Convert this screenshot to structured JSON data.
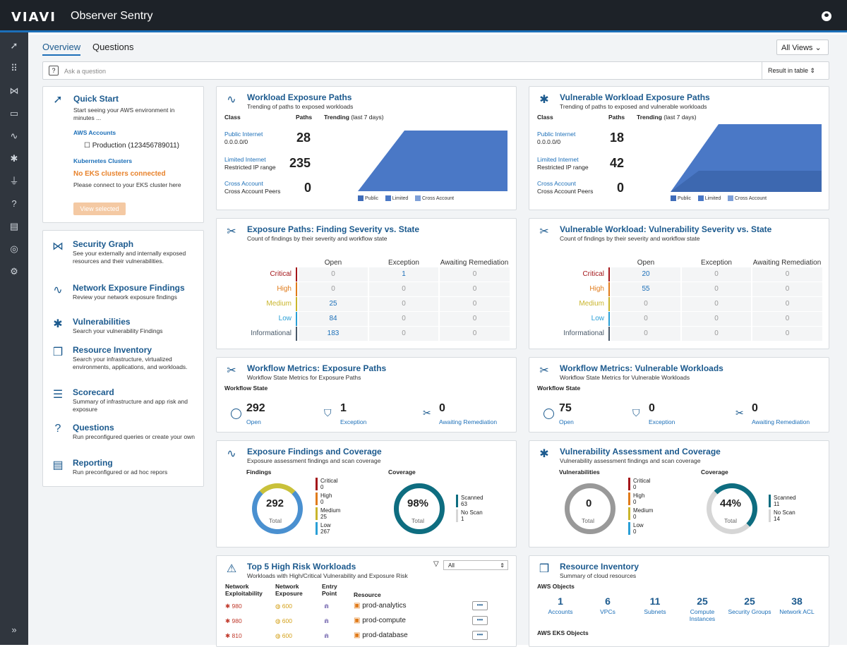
{
  "app": {
    "logo": "VIAVI",
    "name": "Observer Sentry"
  },
  "tabs": [
    "Overview",
    "Questions"
  ],
  "views": "All Views",
  "ask": {
    "placeholder": "Ask a question",
    "mode": "Result in table"
  },
  "quick_start": {
    "title": "Quick Start",
    "desc": "Start seeing your AWS environment in minutes ...",
    "aws": "AWS Accounts",
    "account": "Production (123456789011)",
    "k8s": "Kubernetes Clusters",
    "warn": "No EKS clusters connected",
    "connect": "Please connect to your EKS cluster here",
    "button": "View selected"
  },
  "nav": [
    {
      "title": "Security Graph",
      "desc": "See your externally and internally exposed resources and their vulnerabilities."
    },
    {
      "title": "Network Exposure Findings",
      "desc": "Review your network exposure findings"
    },
    {
      "title": "Vulnerabilities",
      "desc": "Search your vulnerability Findings"
    },
    {
      "title": "Resource Inventory",
      "desc": "Search your infrastructure, virtualized environments, applications, and workloads."
    },
    {
      "title": "Scorecard",
      "desc": "Summary of infrastructure and app risk and exposure"
    },
    {
      "title": "Questions",
      "desc": "Run preconfigured queries or create your own"
    },
    {
      "title": "Reporting",
      "desc": "Run preconfigured or ad hoc repors"
    }
  ],
  "wep": {
    "title": "Workload Exposure Paths",
    "sub": "Trending of paths to exposed workloads",
    "h_class": "Class",
    "h_paths": "Paths",
    "h_trend": "Trending",
    "h_trend2": "(last 7 days)",
    "rows": [
      {
        "name": "Public Internet",
        "sub": "0.0.0.0/0",
        "val": "28"
      },
      {
        "name": "Limited Internet",
        "sub": "Restricted IP range",
        "val": "235"
      },
      {
        "name": "Cross Account",
        "sub": "Cross Account Peers",
        "val": "0"
      }
    ],
    "legend": [
      "Public",
      "Limited",
      "Cross Account"
    ]
  },
  "vwep": {
    "title": "Vulnerable Workload Exposure Paths",
    "sub": "Trending of paths to exposed and vulnerable workloads",
    "h_class": "Class",
    "h_paths": "Paths",
    "h_trend": "Trending",
    "h_trend2": "(last 7 days)",
    "rows": [
      {
        "name": "Public Internet",
        "sub": "0.0.0.0/0",
        "val": "18"
      },
      {
        "name": "Limited Internet",
        "sub": "Restricted IP range",
        "val": "42"
      },
      {
        "name": "Cross Account",
        "sub": "Cross Account Peers",
        "val": "0"
      }
    ],
    "legend": [
      "Public",
      "Limited",
      "Cross Account"
    ]
  },
  "sev1": {
    "title": "Exposure Paths: Finding Severity vs. State",
    "sub": "Count of findings by their severity and workflow state",
    "cols": [
      "Open",
      "Exception",
      "Awaiting Remediation"
    ],
    "rows": [
      [
        "Critical",
        "0",
        "1",
        "0"
      ],
      [
        "High",
        "0",
        "0",
        "0"
      ],
      [
        "Medium",
        "25",
        "0",
        "0"
      ],
      [
        "Low",
        "84",
        "0",
        "0"
      ],
      [
        "Informational",
        "183",
        "0",
        "0"
      ]
    ]
  },
  "sev2": {
    "title": "Vulnerable Workload: Vulnerability Severity vs. State",
    "sub": "Count of findings by their severity and workflow state",
    "cols": [
      "Open",
      "Exception",
      "Awaiting Remediation"
    ],
    "rows": [
      [
        "Critical",
        "20",
        "0",
        "0"
      ],
      [
        "High",
        "55",
        "0",
        "0"
      ],
      [
        "Medium",
        "0",
        "0",
        "0"
      ],
      [
        "Low",
        "0",
        "0",
        "0"
      ],
      [
        "Informational",
        "0",
        "0",
        "0"
      ]
    ]
  },
  "wf1": {
    "title": "Workflow Metrics: Exposure Paths",
    "sub": "Workflow State Metrics for Exposure Paths",
    "state": "Workflow State",
    "open": "292",
    "exception": "1",
    "awaiting": "0",
    "l_open": "Open",
    "l_exc": "Exception",
    "l_aw": "Awaiting Remediation"
  },
  "wf2": {
    "title": "Workflow Metrics: Vulnerable Workloads",
    "sub": "Workflow State Metrics for Vulnerable Workloads",
    "state": "Workflow State",
    "open": "75",
    "exception": "0",
    "awaiting": "0",
    "l_open": "Open",
    "l_exc": "Exception",
    "l_aw": "Awaiting Remediation"
  },
  "efc": {
    "title": "Exposure Findings and Coverage",
    "sub": "Exposure assessment findings and scan coverage",
    "findings": "Findings",
    "coverage": "Coverage",
    "total": "292",
    "total_l": "Total",
    "pct": "98%",
    "legend": [
      [
        "Critical",
        "0"
      ],
      [
        "High",
        "0"
      ],
      [
        "Medium",
        "25"
      ],
      [
        "Low",
        "267"
      ]
    ],
    "cov": [
      [
        "Scanned",
        "63"
      ],
      [
        "No Scan",
        "1"
      ]
    ]
  },
  "vac": {
    "title": "Vulnerability Assessment and Coverage",
    "sub": "Vulnerability assessment findings and scan coverage",
    "findings": "Vulnerabilities",
    "coverage": "Coverage",
    "total": "0",
    "total_l": "Total",
    "pct": "44%",
    "legend": [
      [
        "Critical",
        "0"
      ],
      [
        "High",
        "0"
      ],
      [
        "Medium",
        "0"
      ],
      [
        "Low",
        "0"
      ]
    ],
    "cov": [
      [
        "Scanned",
        "11"
      ],
      [
        "No Scan",
        "14"
      ]
    ]
  },
  "top5": {
    "title": "Top 5 High Risk Workloads",
    "sub": "Workloads with High/Critical Vulnerability and Exposure Risk",
    "filter": "All",
    "h1": "Network",
    "h1b": "Exploitability",
    "h2": "Network",
    "h2b": "Exposure",
    "h3": "Entry",
    "h3b": "Point",
    "h4": "Resource",
    "rows": [
      [
        "980",
        "600",
        "prod-analytics"
      ],
      [
        "980",
        "600",
        "prod-compute"
      ],
      [
        "810",
        "600",
        "prod-database"
      ]
    ]
  },
  "inv": {
    "title": "Resource Inventory",
    "sub": "Summary of cloud resources",
    "aws": "AWS Objects",
    "eks": "AWS EKS Objects",
    "items": [
      [
        "1",
        "Accounts"
      ],
      [
        "6",
        "VPCs"
      ],
      [
        "11",
        "Subnets"
      ],
      [
        "25",
        "Compute Instances"
      ],
      [
        "25",
        "Security Groups"
      ],
      [
        "38",
        "Network ACL"
      ]
    ]
  }
}
